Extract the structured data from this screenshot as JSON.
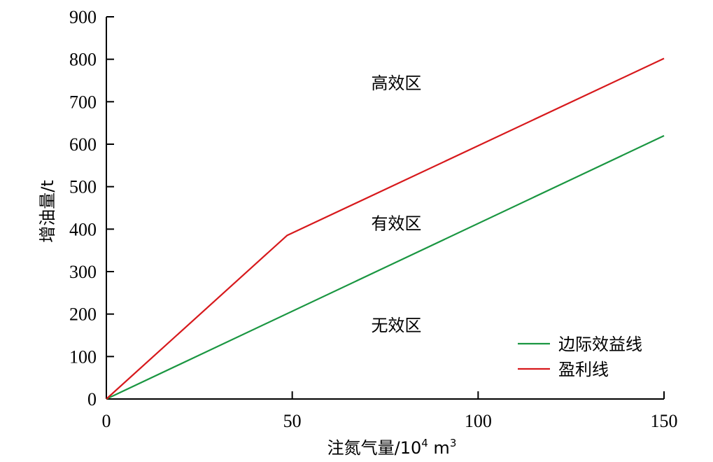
{
  "chart_data": {
    "type": "line",
    "title": "",
    "xlabel_main": "注氮气量/10",
    "xlabel_sup1": "4",
    "xlabel_mid": " m",
    "xlabel_sup2": "3",
    "ylabel": "增油量/t",
    "xlim": [
      0,
      150
    ],
    "ylim": [
      0,
      900
    ],
    "xticks": [
      0,
      50,
      100,
      150
    ],
    "yticks": [
      0,
      100,
      200,
      300,
      400,
      500,
      600,
      700,
      800,
      900
    ],
    "grid": false,
    "legend_position": "bottom-right",
    "series": [
      {
        "name": "边际效益线",
        "color": "#1a9641",
        "points": [
          [
            0,
            0
          ],
          [
            150,
            620
          ]
        ]
      },
      {
        "name": "盈利线",
        "color": "#d7191c",
        "points": [
          [
            0,
            0
          ],
          [
            48.6,
            385
          ],
          [
            150,
            802
          ]
        ]
      }
    ],
    "annotations": [
      {
        "text": "高效区",
        "x": 78,
        "y": 730
      },
      {
        "text": "有效区",
        "x": 78,
        "y": 400
      },
      {
        "text": "无效区",
        "x": 78,
        "y": 160
      }
    ]
  }
}
